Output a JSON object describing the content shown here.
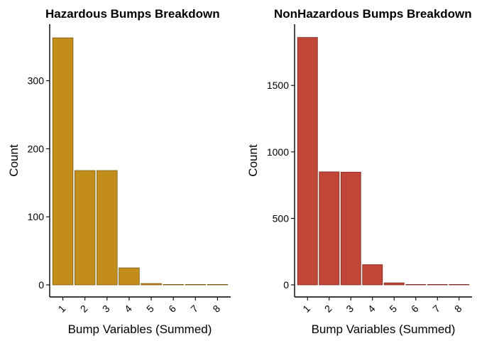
{
  "chart_data": [
    {
      "type": "bar",
      "title": "Hazardous Bumps Breakdown",
      "xlabel": "Bump Variables (Summed)",
      "ylabel": "Count",
      "categories": [
        "1",
        "2",
        "3",
        "4",
        "5",
        "6",
        "7",
        "8"
      ],
      "values": [
        363,
        168,
        168,
        25,
        2,
        0,
        0,
        0
      ],
      "yticks": [
        0,
        100,
        200,
        300
      ],
      "ylim": [
        0,
        381
      ],
      "fill": "#C38D1C",
      "stroke": "#7A5A10",
      "grid": false
    },
    {
      "type": "bar",
      "title": "NonHazardous Bumps Breakdown",
      "xlabel": "Bump Variables (Summed)",
      "ylabel": "Count",
      "categories": [
        "1",
        "2",
        "3",
        "4",
        "5",
        "6",
        "7",
        "8"
      ],
      "values": [
        1861,
        850,
        848,
        152,
        15,
        2,
        1,
        1
      ],
      "yticks": [
        0,
        500,
        1000,
        1500
      ],
      "ylim": [
        0,
        1950
      ],
      "fill": "#C24637",
      "stroke": "#7A2A20",
      "grid": false
    }
  ]
}
